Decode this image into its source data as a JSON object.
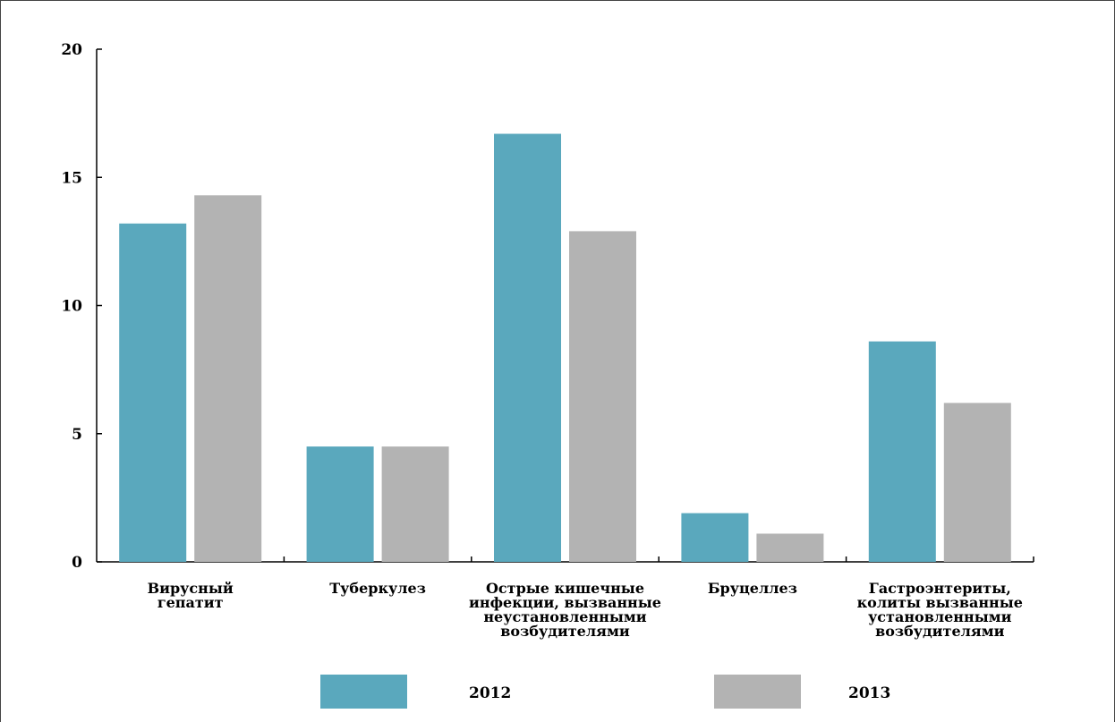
{
  "chart_data": {
    "type": "bar",
    "title": "",
    "xlabel": "",
    "ylabel": "",
    "categories": [
      [
        "Вирусный",
        "гепатит"
      ],
      [
        "Туберкулез"
      ],
      [
        "Острые  кишечные",
        "инфекции,  вызванные",
        "неустановленными",
        "возбудителями"
      ],
      [
        "Бруцеллез"
      ],
      [
        "Гастроэнтериты,",
        "колиты вызванные",
        "установленными",
        "возбудителями"
      ]
    ],
    "series": [
      {
        "name": "2012",
        "color": "#5aa8bd",
        "values": [
          13.2,
          4.5,
          16.7,
          1.9,
          8.6
        ]
      },
      {
        "name": "2013",
        "color": "#b3b3b3",
        "values": [
          14.3,
          4.5,
          12.9,
          1.1,
          6.2
        ]
      }
    ],
    "ylim": [
      0,
      20
    ],
    "yticks": [
      "0",
      "5",
      "10",
      "15",
      "20"
    ],
    "grid": false,
    "legend_position": "bottom"
  }
}
